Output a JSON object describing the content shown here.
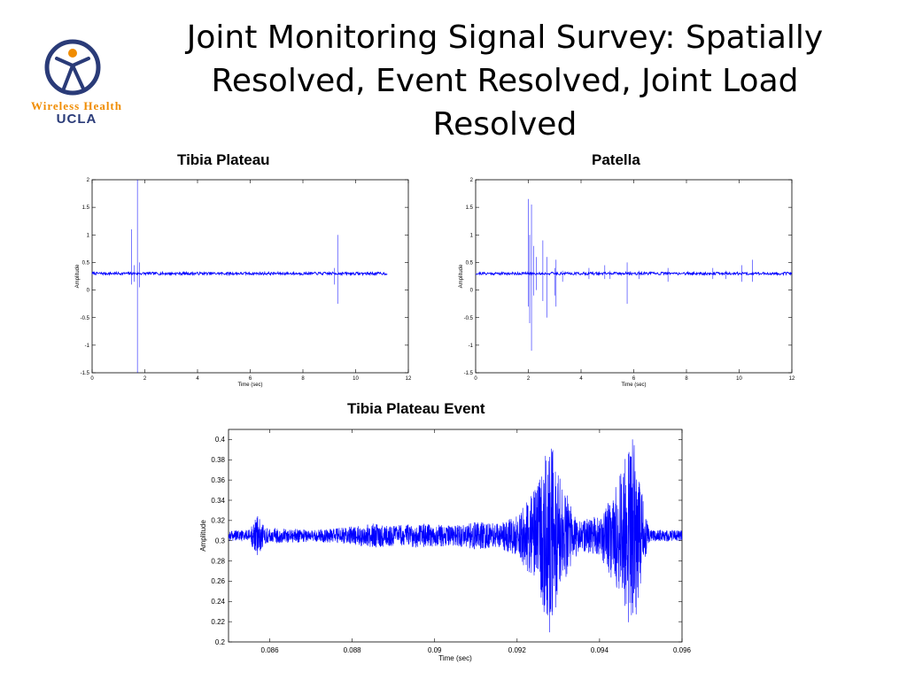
{
  "slide": {
    "title": "Joint Monitoring Signal Survey: Spatially Resolved, Event Resolved, Joint Load Resolved"
  },
  "logo": {
    "line1": "Wireless Health",
    "line2": "UCLA",
    "colors": {
      "figure": "#2a3b78",
      "accent": "#f08c00"
    }
  },
  "colors": {
    "signal": "#0000ff",
    "axis": "#000000",
    "grid_frame": "#000000"
  },
  "chart_data": [
    {
      "panel_label": "Tibia Plateau",
      "type": "line",
      "xlabel": "Time (sec)",
      "ylabel": "Amplitude",
      "xlim": [
        0,
        12
      ],
      "ylim": [
        -1.5,
        2
      ],
      "xticks": [
        0,
        2,
        4,
        6,
        8,
        10,
        12
      ],
      "yticks": [
        -1.5,
        -1,
        -0.5,
        0,
        0.5,
        1,
        1.5,
        2
      ],
      "yticklabels": [
        "-1.5",
        "-1",
        "-0.5",
        "0",
        "0.5",
        "1",
        "1.5",
        "2"
      ],
      "x_end": 11.2,
      "baseline": 0.3,
      "spikes": [
        [
          1.5,
          1.1,
          0.1
        ],
        [
          1.6,
          0.45,
          0.15
        ],
        [
          1.72,
          2.0,
          -1.5
        ],
        [
          1.8,
          0.5,
          0.05
        ],
        [
          9.2,
          0.4,
          0.1
        ],
        [
          9.32,
          1.0,
          -0.25
        ]
      ]
    },
    {
      "panel_label": "Patella",
      "type": "line",
      "xlabel": "Time (sec)",
      "ylabel": "Amplitude",
      "xlim": [
        0,
        12
      ],
      "ylim": [
        -1.5,
        2
      ],
      "xticks": [
        0,
        2,
        4,
        6,
        8,
        10,
        12
      ],
      "yticks": [
        -1.5,
        -1,
        -0.5,
        0,
        0.5,
        1,
        1.5,
        2
      ],
      "yticklabels": [
        "-1.5",
        "-1",
        "-0.5",
        "0",
        "0.5",
        "1",
        "1.5",
        "2"
      ],
      "x_end": 12,
      "baseline": 0.3,
      "spikes": [
        [
          2.0,
          1.65,
          -0.3
        ],
        [
          2.05,
          1.0,
          -0.6
        ],
        [
          2.12,
          1.55,
          -1.1
        ],
        [
          2.2,
          0.8,
          -0.1
        ],
        [
          2.3,
          0.6,
          0.0
        ],
        [
          2.55,
          0.9,
          -0.2
        ],
        [
          2.7,
          0.6,
          -0.5
        ],
        [
          3.0,
          0.4,
          -0.1
        ],
        [
          3.05,
          0.55,
          -0.3
        ],
        [
          3.3,
          0.35,
          0.15
        ],
        [
          4.3,
          0.4,
          0.2
        ],
        [
          4.9,
          0.45,
          0.2
        ],
        [
          5.1,
          0.35,
          0.2
        ],
        [
          5.75,
          0.5,
          -0.25
        ],
        [
          6.2,
          0.35,
          0.2
        ],
        [
          7.3,
          0.4,
          0.15
        ],
        [
          9.0,
          0.4,
          0.2
        ],
        [
          9.5,
          0.35,
          0.2
        ],
        [
          10.1,
          0.45,
          0.15
        ],
        [
          10.5,
          0.55,
          0.15
        ]
      ]
    },
    {
      "panel_label": "Tibia Plateau Event",
      "type": "line",
      "xlabel": "Time (sec)",
      "ylabel": "Amplitude",
      "xlim": [
        0.085,
        0.096
      ],
      "ylim": [
        0.2,
        0.41
      ],
      "xticks": [
        0.086,
        0.088,
        0.09,
        0.092,
        0.094,
        0.096
      ],
      "xticklabels": [
        "0.086",
        "0.088",
        "0.09",
        "0.092",
        "0.094",
        "0.096"
      ],
      "yticks": [
        0.2,
        0.22,
        0.24,
        0.26,
        0.28,
        0.3,
        0.32,
        0.34,
        0.36,
        0.38,
        0.4
      ],
      "yticklabels": [
        "0.2",
        "0.22",
        "0.24",
        "0.26",
        "0.28",
        "0.3",
        "0.32",
        "0.34",
        "0.36",
        "0.38",
        "0.4"
      ],
      "baseline": 0.305,
      "envelope": [
        [
          0.085,
          0.005
        ],
        [
          0.0855,
          0.006
        ],
        [
          0.0857,
          0.02
        ],
        [
          0.0859,
          0.008
        ],
        [
          0.087,
          0.006
        ],
        [
          0.0878,
          0.008
        ],
        [
          0.0885,
          0.012
        ],
        [
          0.089,
          0.01
        ],
        [
          0.0895,
          0.012
        ],
        [
          0.0905,
          0.01
        ],
        [
          0.091,
          0.014
        ],
        [
          0.0915,
          0.012
        ],
        [
          0.092,
          0.02
        ],
        [
          0.0925,
          0.05
        ],
        [
          0.0928,
          0.1
        ],
        [
          0.093,
          0.06
        ],
        [
          0.0935,
          0.015
        ],
        [
          0.094,
          0.02
        ],
        [
          0.0945,
          0.06
        ],
        [
          0.0948,
          0.1
        ],
        [
          0.095,
          0.05
        ],
        [
          0.0952,
          0.006
        ],
        [
          0.096,
          0.005
        ]
      ]
    }
  ]
}
